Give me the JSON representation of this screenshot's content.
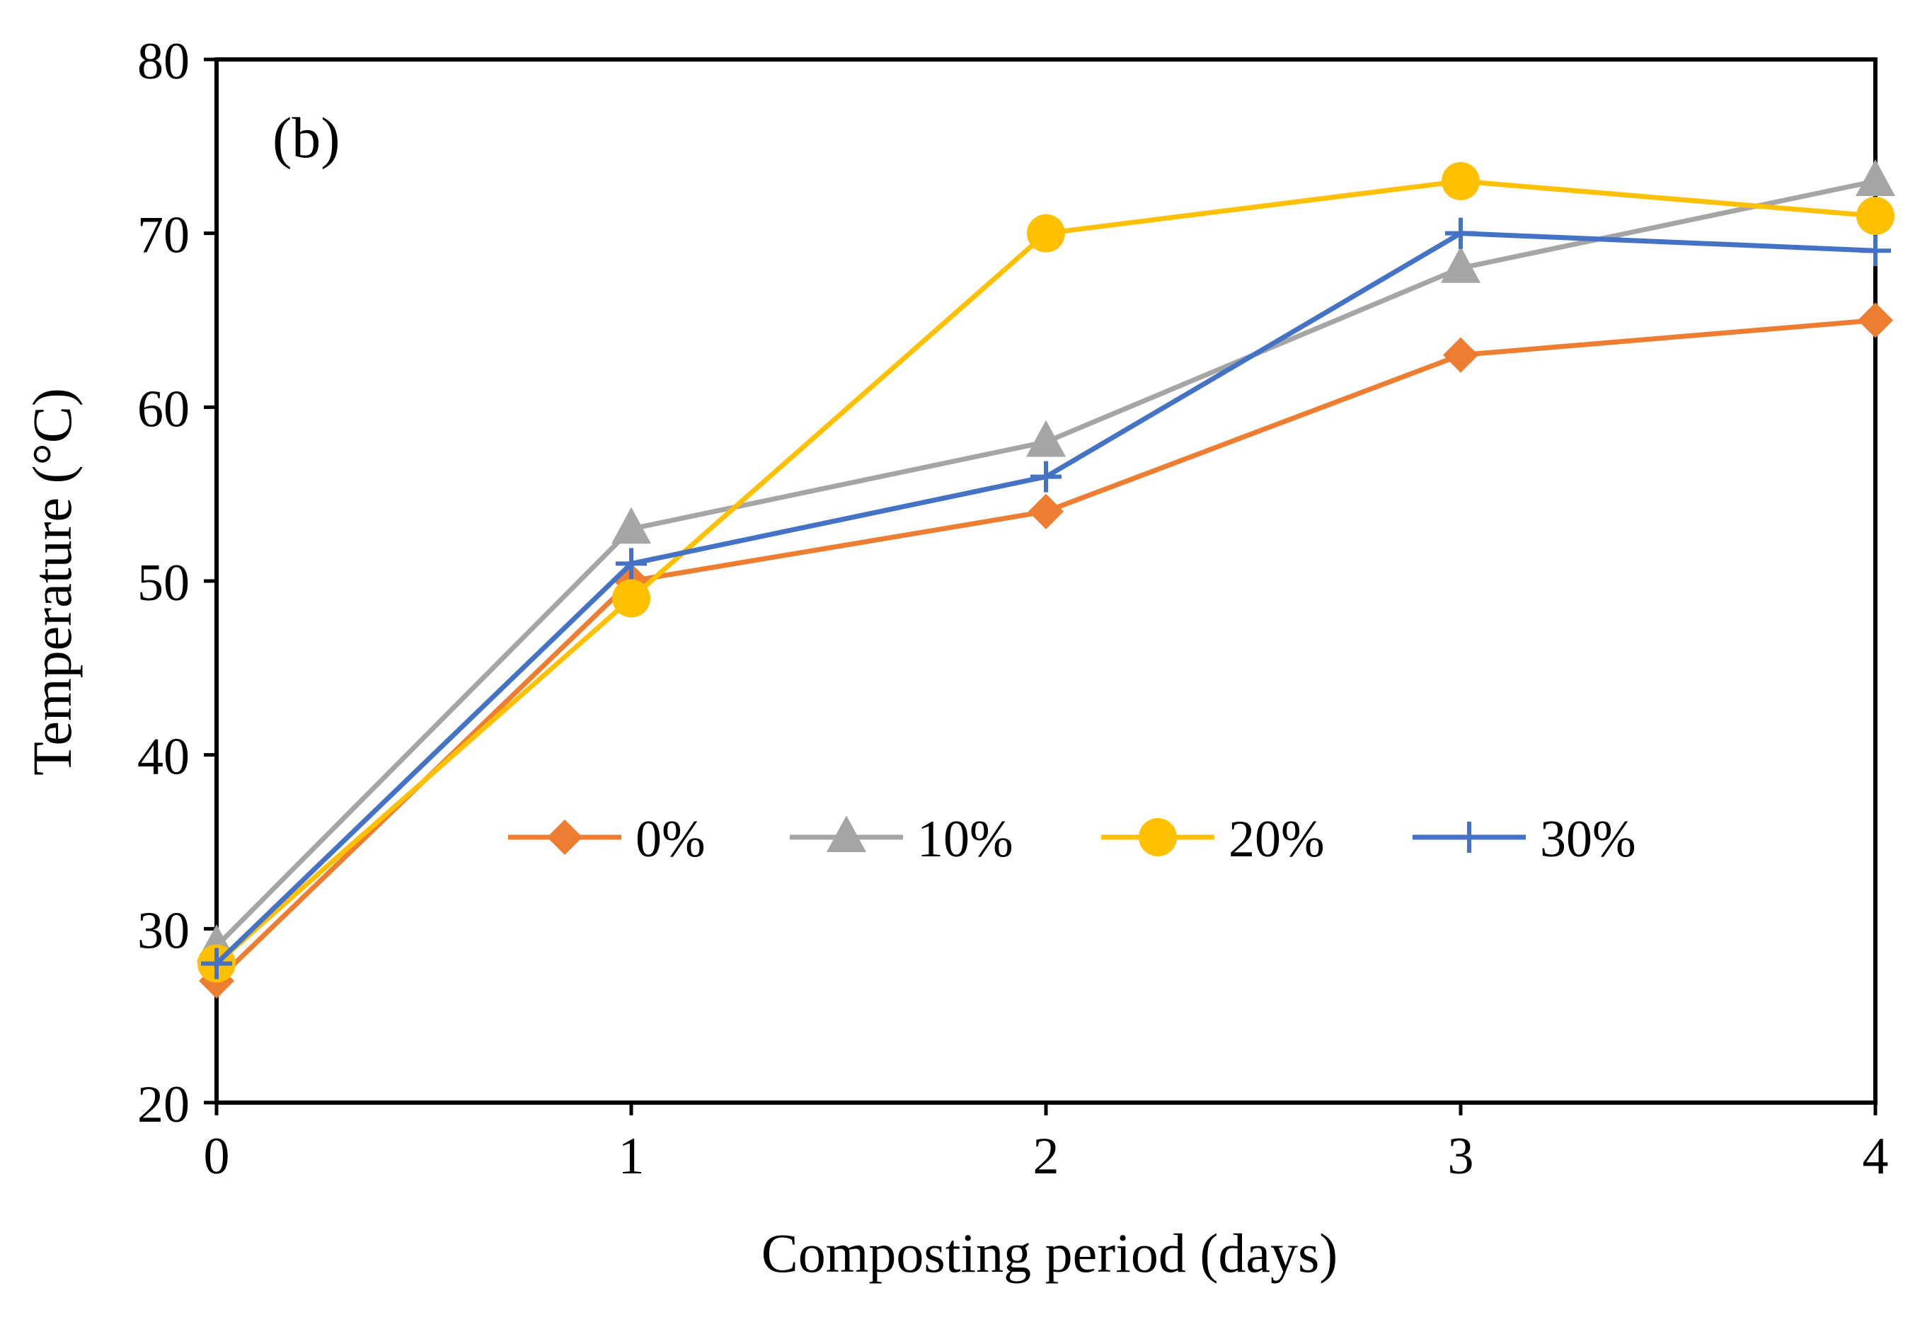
{
  "chart_data": {
    "type": "line",
    "panel_label": "(b)",
    "xlabel": "Composting period (days)",
    "ylabel": "Temperature (°C)",
    "x": [
      0,
      1,
      2,
      3,
      4
    ],
    "xlim": [
      0,
      4
    ],
    "ylim": [
      20,
      80
    ],
    "x_ticks": [
      "0",
      "1",
      "2",
      "3",
      "4"
    ],
    "y_ticks": [
      "20",
      "30",
      "40",
      "50",
      "60",
      "70",
      "80"
    ],
    "grid": false,
    "legend_position": "center",
    "series": [
      {
        "name": "0%",
        "marker": "diamond",
        "color": "#ED7D31",
        "values": [
          27,
          50,
          54,
          63,
          65
        ]
      },
      {
        "name": "10%",
        "marker": "triangle",
        "color": "#A5A5A5",
        "values": [
          29,
          53,
          58,
          68,
          73
        ]
      },
      {
        "name": "20%",
        "marker": "circle",
        "color": "#FFC000",
        "values": [
          28,
          49,
          70,
          73,
          71
        ]
      },
      {
        "name": "30%",
        "marker": "plus",
        "color": "#4472C4",
        "values": [
          28,
          51,
          56,
          70,
          69
        ]
      }
    ]
  }
}
